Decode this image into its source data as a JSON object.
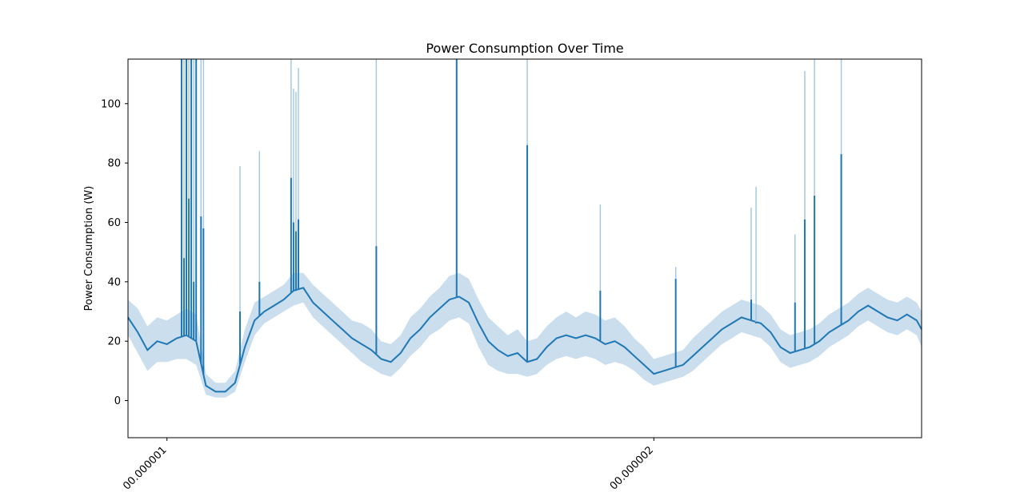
{
  "chart_data": {
    "type": "line",
    "title": "Power Consumption Over Time",
    "xlabel": "",
    "ylabel": "Power Consumption (W)",
    "xlim": [
      9.2e-07,
      2.55e-06
    ],
    "ylim": [
      -12.5,
      115
    ],
    "x_ticks": [
      {
        "value": 1e-06,
        "label": "00.000001"
      },
      {
        "value": 2e-06,
        "label": "00.000002"
      }
    ],
    "y_ticks": [
      0,
      20,
      40,
      60,
      80,
      100
    ],
    "grid": false,
    "legend": "none",
    "colors": {
      "line": "#1f77b4",
      "band": "#a6c8e3"
    },
    "series": [
      {
        "x": [
          9.2e-07,
          9.4e-07,
          9.6e-07,
          9.8e-07,
          1e-06,
          1.02e-06,
          1.04e-06,
          1.06e-06,
          1.08e-06,
          1.1e-06,
          1.12e-06,
          1.14e-06,
          1.16e-06,
          1.18e-06,
          1.2e-06,
          1.22e-06,
          1.24e-06,
          1.26e-06,
          1.28e-06,
          1.3e-06,
          1.32e-06,
          1.34e-06,
          1.36e-06,
          1.38e-06,
          1.4e-06,
          1.42e-06,
          1.44e-06,
          1.46e-06,
          1.48e-06,
          1.5e-06,
          1.52e-06,
          1.54e-06,
          1.56e-06,
          1.58e-06,
          1.6e-06,
          1.62e-06,
          1.64e-06,
          1.66e-06,
          1.68e-06,
          1.7e-06,
          1.72e-06,
          1.74e-06,
          1.76e-06,
          1.78e-06,
          1.8e-06,
          1.82e-06,
          1.84e-06,
          1.86e-06,
          1.88e-06,
          1.9e-06,
          1.92e-06,
          1.94e-06,
          1.96e-06,
          1.98e-06,
          2e-06,
          2.02e-06,
          2.04e-06,
          2.06e-06,
          2.08e-06,
          2.1e-06,
          2.12e-06,
          2.14e-06,
          2.16e-06,
          2.18e-06,
          2.2e-06,
          2.22e-06,
          2.24e-06,
          2.26e-06,
          2.28e-06,
          2.3e-06,
          2.32e-06,
          2.34e-06,
          2.36e-06,
          2.38e-06,
          2.4e-06,
          2.42e-06,
          2.44e-06,
          2.46e-06,
          2.48e-06,
          2.5e-06,
          2.52e-06,
          2.54e-06,
          2.55e-06
        ],
        "values": [
          28,
          23,
          17,
          20,
          19,
          21,
          22,
          20,
          5,
          3,
          3,
          6,
          18,
          27,
          30,
          32,
          34,
          37,
          38,
          33,
          30,
          27,
          24,
          21,
          19,
          17,
          14,
          13,
          16,
          21,
          24,
          28,
          31,
          34,
          35,
          33,
          26,
          20,
          17,
          15,
          16,
          13,
          14,
          18,
          21,
          22,
          21,
          22,
          21,
          19,
          20,
          18,
          15,
          12,
          9,
          10,
          11,
          12,
          15,
          18,
          21,
          24,
          26,
          28,
          27,
          26,
          23,
          18,
          16,
          17,
          18,
          20,
          23,
          25,
          27,
          30,
          32,
          30,
          28,
          27,
          29,
          27,
          24
        ],
        "lower": [
          22,
          16,
          10,
          13,
          13,
          14,
          14,
          12,
          2,
          1,
          1,
          3,
          13,
          22,
          26,
          28,
          30,
          32,
          33,
          28,
          25,
          22,
          19,
          16,
          13,
          11,
          9,
          8,
          11,
          15,
          18,
          22,
          24,
          27,
          28,
          26,
          18,
          12,
          10,
          9,
          9,
          8,
          9,
          12,
          14,
          15,
          14,
          15,
          14,
          12,
          13,
          12,
          10,
          7,
          5,
          6,
          7,
          8,
          10,
          13,
          16,
          19,
          21,
          23,
          22,
          21,
          18,
          13,
          11,
          12,
          13,
          15,
          18,
          20,
          22,
          25,
          27,
          25,
          23,
          22,
          24,
          22,
          18
        ],
        "upper": [
          34,
          31,
          25,
          28,
          27,
          29,
          31,
          29,
          9,
          6,
          6,
          10,
          24,
          33,
          35,
          37,
          39,
          43,
          43,
          39,
          36,
          33,
          30,
          27,
          26,
          24,
          20,
          19,
          22,
          28,
          31,
          35,
          38,
          42,
          43,
          41,
          34,
          28,
          25,
          22,
          24,
          20,
          21,
          25,
          28,
          30,
          28,
          30,
          29,
          27,
          28,
          25,
          21,
          18,
          14,
          15,
          16,
          17,
          21,
          24,
          27,
          30,
          32,
          34,
          33,
          32,
          29,
          24,
          22,
          23,
          24,
          26,
          29,
          31,
          33,
          36,
          38,
          36,
          34,
          33,
          35,
          33,
          30
        ]
      }
    ],
    "spikes": [
      {
        "x": 1.03e-06,
        "y": 115,
        "band": 115
      },
      {
        "x": 1.035e-06,
        "y": 48,
        "band": 115
      },
      {
        "x": 1.04e-06,
        "y": 115,
        "band": 115
      },
      {
        "x": 1.045e-06,
        "y": 68,
        "band": 115
      },
      {
        "x": 1.05e-06,
        "y": 115,
        "band": 115
      },
      {
        "x": 1.055e-06,
        "y": 40,
        "band": 115
      },
      {
        "x": 1.06e-06,
        "y": 115,
        "band": 115
      },
      {
        "x": 1.07e-06,
        "y": 62,
        "band": 115
      },
      {
        "x": 1.075e-06,
        "y": 58,
        "band": 115
      },
      {
        "x": 1.15e-06,
        "y": 30,
        "band": 79
      },
      {
        "x": 1.19e-06,
        "y": 40,
        "band": 84
      },
      {
        "x": 1.255e-06,
        "y": 75,
        "band": 115
      },
      {
        "x": 1.26e-06,
        "y": 60,
        "band": 105
      },
      {
        "x": 1.265e-06,
        "y": 57,
        "band": 104
      },
      {
        "x": 1.27e-06,
        "y": 61,
        "band": 112
      },
      {
        "x": 1.43e-06,
        "y": 52,
        "band": 115
      },
      {
        "x": 1.595e-06,
        "y": 115,
        "band": 115
      },
      {
        "x": 1.74e-06,
        "y": 86,
        "band": 115
      },
      {
        "x": 1.89e-06,
        "y": 37,
        "band": 66
      },
      {
        "x": 2.045e-06,
        "y": 41,
        "band": 45
      },
      {
        "x": 2.2e-06,
        "y": 34,
        "band": 65
      },
      {
        "x": 2.21e-06,
        "y": 26,
        "band": 72
      },
      {
        "x": 2.29e-06,
        "y": 33,
        "band": 56
      },
      {
        "x": 2.31e-06,
        "y": 61,
        "band": 111
      },
      {
        "x": 2.33e-06,
        "y": 69,
        "band": 115
      },
      {
        "x": 2.385e-06,
        "y": 83,
        "band": 115
      }
    ]
  }
}
